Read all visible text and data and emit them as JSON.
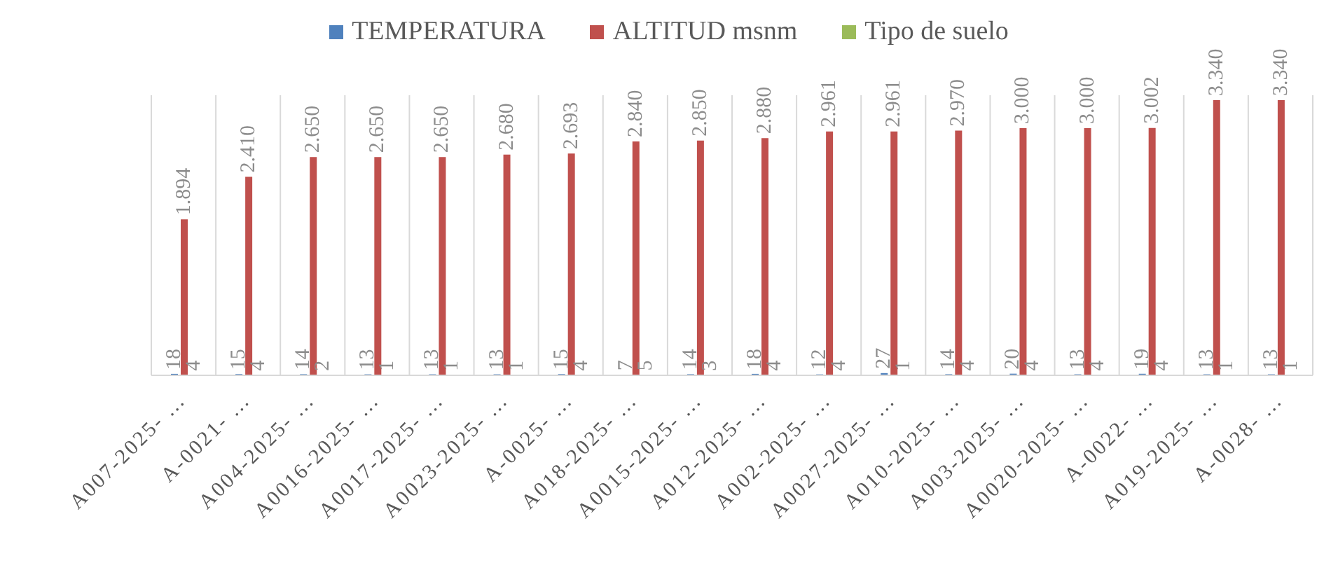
{
  "chart_data": {
    "type": "bar",
    "categories": [
      "A007-2025- …",
      "A-0021- …",
      "A004-2025- …",
      "A0016-2025- …",
      "A0017-2025- …",
      "A0023-2025- …",
      "A-0025- …",
      "A018-2025- …",
      "A0015-2025- …",
      "A012-2025- …",
      "A002-2025- …",
      "A0027-2025- …",
      "A010-2025- …",
      "A003-2025- …",
      "A0020-2025- …",
      "A-0022- …",
      "A019-2025- …",
      "A-0028- …"
    ],
    "series": [
      {
        "name": "TEMPERATURA",
        "color": "#4f81bd",
        "values": [
          18,
          15,
          14,
          13,
          13,
          13,
          15,
          7,
          14,
          18,
          12,
          27,
          14,
          20,
          13,
          19,
          13,
          13
        ],
        "value_labels": [
          "18",
          "15",
          "14",
          "13",
          "13",
          "13",
          "15",
          "7",
          "14",
          "18",
          "12",
          "27",
          "14",
          "20",
          "13",
          "19",
          "13",
          "13"
        ]
      },
      {
        "name": "ALTITUD msnm",
        "color": "#c0504d",
        "values": [
          1894,
          2410,
          2650,
          2650,
          2650,
          2680,
          2693,
          2840,
          2850,
          2880,
          2961,
          2961,
          2970,
          3000,
          3000,
          3002,
          3340,
          3340
        ],
        "value_labels": [
          "1.894",
          "2.410",
          "2.650",
          "2.650",
          "2.650",
          "2.680",
          "2.693",
          "2.840",
          "2.850",
          "2.880",
          "2.961",
          "2.961",
          "2.970",
          "3.000",
          "3.000",
          "3.002",
          "3.340",
          "3.340"
        ]
      },
      {
        "name": "Tipo de suelo",
        "color": "#9bbb59",
        "values": [
          4,
          4,
          2,
          1,
          1,
          1,
          4,
          5,
          3,
          4,
          4,
          1,
          4,
          4,
          4,
          4,
          1,
          1
        ],
        "value_labels": [
          "4",
          "4",
          "2",
          "1",
          "1",
          "1",
          "4",
          "5",
          "3",
          "4",
          "4",
          "1",
          "4",
          "4",
          "4",
          "4",
          "1",
          "1"
        ]
      }
    ],
    "legend": "top",
    "grid": "x"
  }
}
